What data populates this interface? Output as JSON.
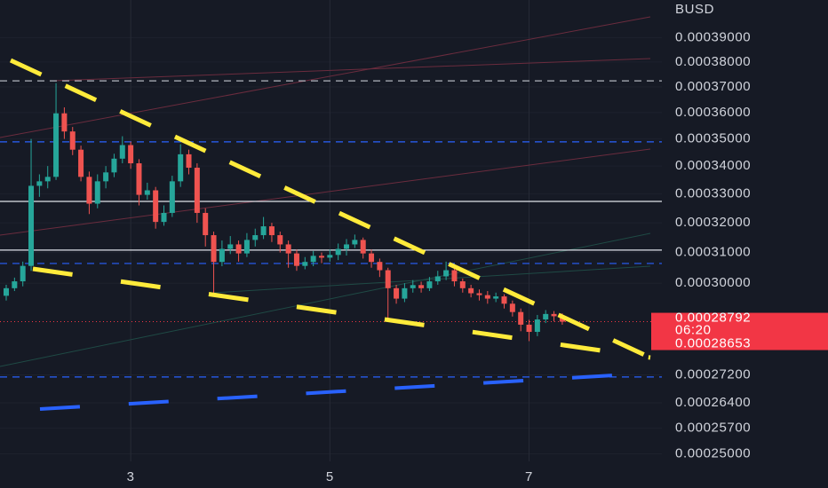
{
  "chart_data": {
    "type": "candlestick",
    "y_label": "BUSD",
    "x": [
      18,
      20,
      22,
      24,
      26,
      28,
      30,
      32,
      34,
      36,
      38,
      40,
      42,
      44,
      46,
      48,
      50,
      52,
      54,
      56,
      58,
      60,
      62,
      64,
      66,
      68,
      70,
      72,
      74,
      76,
      78,
      80,
      82,
      84,
      86,
      88,
      90,
      92,
      94,
      96,
      98,
      100,
      102,
      104,
      106,
      108,
      110,
      112,
      114,
      116,
      118,
      120,
      122,
      124,
      126,
      128,
      130,
      132,
      134,
      136,
      138,
      140,
      142,
      144,
      146,
      148,
      150,
      152
    ],
    "open": [
      0.000296,
      0.0002984,
      0.0003006,
      0.0003056,
      0.0003329,
      0.0003345,
      0.0003361,
      0.0003597,
      0.0003528,
      0.000346,
      0.0003361,
      0.0003266,
      0.0003345,
      0.0003377,
      0.0003427,
      0.0003477,
      0.000341,
      0.0003297,
      0.0003313,
      0.0003203,
      0.0003234,
      0.0003345,
      0.0003443,
      0.0003394,
      0.0003234,
      0.0003158,
      0.0003069,
      0.0003112,
      0.0003127,
      0.0003097,
      0.0003142,
      0.0003158,
      0.0003188,
      0.0003158,
      0.0003127,
      0.0003097,
      0.0003056,
      0.0003069,
      0.0003089,
      0.0003083,
      0.0003092,
      0.0003112,
      0.0003127,
      0.0003142,
      0.0003097,
      0.0003069,
      0.0003042,
      0.0002984,
      0.0002951,
      0.0002984,
      0.0002994,
      0.0002984,
      0.0003006,
      0.0003022,
      0.0003042,
      0.0003006,
      0.0002984,
      0.0002968,
      0.0002962,
      0.0002951,
      0.0002958,
      0.0002935,
      0.0002909,
      0.000287,
      0.0002848,
      0.0002886,
      0.0002903,
      0.0002896
    ],
    "high": [
      0.0002995,
      0.0003018,
      0.000307,
      0.00035,
      0.000337,
      0.00034,
      0.0003715,
      0.000362,
      0.0003545,
      0.0003475,
      0.000338,
      0.000337,
      0.00034,
      0.0003445,
      0.000351,
      0.000349,
      0.0003425,
      0.000334,
      0.0003325,
      0.000326,
      0.0003365,
      0.000348,
      0.000346,
      0.000341,
      0.000325,
      0.000317,
      0.000314,
      0.0003155,
      0.000314,
      0.0003165,
      0.000318,
      0.000322,
      0.00032,
      0.000317,
      0.000314,
      0.000311,
      0.0003085,
      0.0003105,
      0.00031,
      0.000311,
      0.000313,
      0.0003145,
      0.000316,
      0.000315,
      0.000311,
      0.000308,
      0.000305,
      0.0002995,
      0.0003,
      0.000301,
      0.0003005,
      0.000302,
      0.000304,
      0.000307,
      0.0003055,
      0.0003015,
      0.0002995,
      0.000298,
      0.0002975,
      0.000297,
      0.0002965,
      0.0002945,
      0.000292,
      0.0002885,
      0.00029,
      0.0002915,
      0.0002912,
      0.0002905
    ],
    "low": [
      0.0002945,
      0.0002975,
      0.000299,
      0.000304,
      0.000329,
      0.000332,
      0.000335,
      0.00035,
      0.000344,
      0.0003345,
      0.000323,
      0.000325,
      0.000332,
      0.000336,
      0.000341,
      0.000339,
      0.000326,
      0.000328,
      0.000318,
      0.000319,
      0.000322,
      0.0003325,
      0.000337,
      0.00032,
      0.000312,
      0.000296,
      0.0003055,
      0.0003095,
      0.000307,
      0.0003085,
      0.000312,
      0.0003145,
      0.0003135,
      0.00031,
      0.000305,
      0.000304,
      0.0003045,
      0.0003055,
      0.0003065,
      0.000307,
      0.0003075,
      0.000309,
      0.0003115,
      0.000308,
      0.000305,
      0.000302,
      0.000289,
      0.0002935,
      0.000294,
      0.000297,
      0.000297,
      0.0002975,
      0.0002995,
      0.000301,
      0.000299,
      0.000297,
      0.0002955,
      0.0002945,
      0.0002935,
      0.000294,
      0.000292,
      0.0002895,
      0.000285,
      0.000282,
      0.0002835,
      0.0002875,
      0.000288,
      0.000287
    ],
    "close": [
      0.0002984,
      0.0003006,
      0.0003056,
      0.0003329,
      0.0003345,
      0.0003361,
      0.0003597,
      0.0003528,
      0.000346,
      0.0003361,
      0.0003266,
      0.0003345,
      0.0003377,
      0.0003427,
      0.0003477,
      0.000341,
      0.0003297,
      0.0003313,
      0.0003203,
      0.0003234,
      0.0003345,
      0.0003443,
      0.0003394,
      0.0003234,
      0.0003158,
      0.0003069,
      0.0003112,
      0.0003127,
      0.0003097,
      0.0003142,
      0.0003158,
      0.0003188,
      0.0003158,
      0.0003127,
      0.0003097,
      0.0003056,
      0.0003069,
      0.0003089,
      0.0003083,
      0.0003092,
      0.0003112,
      0.0003127,
      0.0003142,
      0.0003097,
      0.0003069,
      0.0003042,
      0.0002984,
      0.0002951,
      0.0002984,
      0.0002994,
      0.0002984,
      0.0003006,
      0.0003022,
      0.0003042,
      0.0003006,
      0.0002984,
      0.0002968,
      0.0002962,
      0.0002951,
      0.0002958,
      0.0002935,
      0.0002909,
      0.000287,
      0.0002848,
      0.0002886,
      0.0002903,
      0.0002896,
      0.00028792
    ],
    "up_color": "#26a69a",
    "down_color": "#ef5350",
    "xlim": [
      16.5,
      176
    ],
    "xticks": [
      {
        "value": 48,
        "label": "3"
      },
      {
        "value": 96,
        "label": "5"
      },
      {
        "value": 144,
        "label": "7"
      }
    ],
    "ylim": [
      0.000248,
      0.000406
    ],
    "yscale": "log",
    "yticks": [
      {
        "value": 0.00039,
        "label": "0.00039000"
      },
      {
        "value": 0.00038,
        "label": "0.00038000"
      },
      {
        "value": 0.00037,
        "label": "0.00037000"
      },
      {
        "value": 0.00036,
        "label": "0.00036000"
      },
      {
        "value": 0.00035,
        "label": "0.00035000"
      },
      {
        "value": 0.00034,
        "label": "0.00034000"
      },
      {
        "value": 0.00033,
        "label": "0.00033000"
      },
      {
        "value": 0.00032,
        "label": "0.00032000"
      },
      {
        "value": 0.00031,
        "label": "0.00031000"
      },
      {
        "value": 0.0003,
        "label": "0.00030000"
      },
      {
        "value": 0.000272,
        "label": "0.00027200"
      },
      {
        "value": 0.000264,
        "label": "0.00026400"
      },
      {
        "value": 0.000257,
        "label": "0.00025700"
      },
      {
        "value": 0.00025,
        "label": "0.00025000"
      }
    ],
    "grid": true,
    "levels": [
      {
        "value": 0.0003724,
        "color": "#b2b5be",
        "dash": true
      },
      {
        "value": 0.0003489,
        "color": "#2962ff",
        "dash": true
      },
      {
        "value": 0.0003274,
        "color": "#e0e3eb",
        "dash": false
      },
      {
        "value": 0.0003108,
        "color": "#e0e3eb",
        "dash": false
      },
      {
        "value": 0.0003064,
        "color": "#2962ff",
        "dash": true
      },
      {
        "value": 0.0002714,
        "color": "#2962ff",
        "dash": true
      }
    ],
    "price_labels": [
      {
        "value": 0.00028792,
        "label": "0.00028792"
      },
      {
        "value": 0.00028653,
        "label": "0.00028653"
      }
    ],
    "countdown": "06:20",
    "price_color": "#f23645"
  }
}
